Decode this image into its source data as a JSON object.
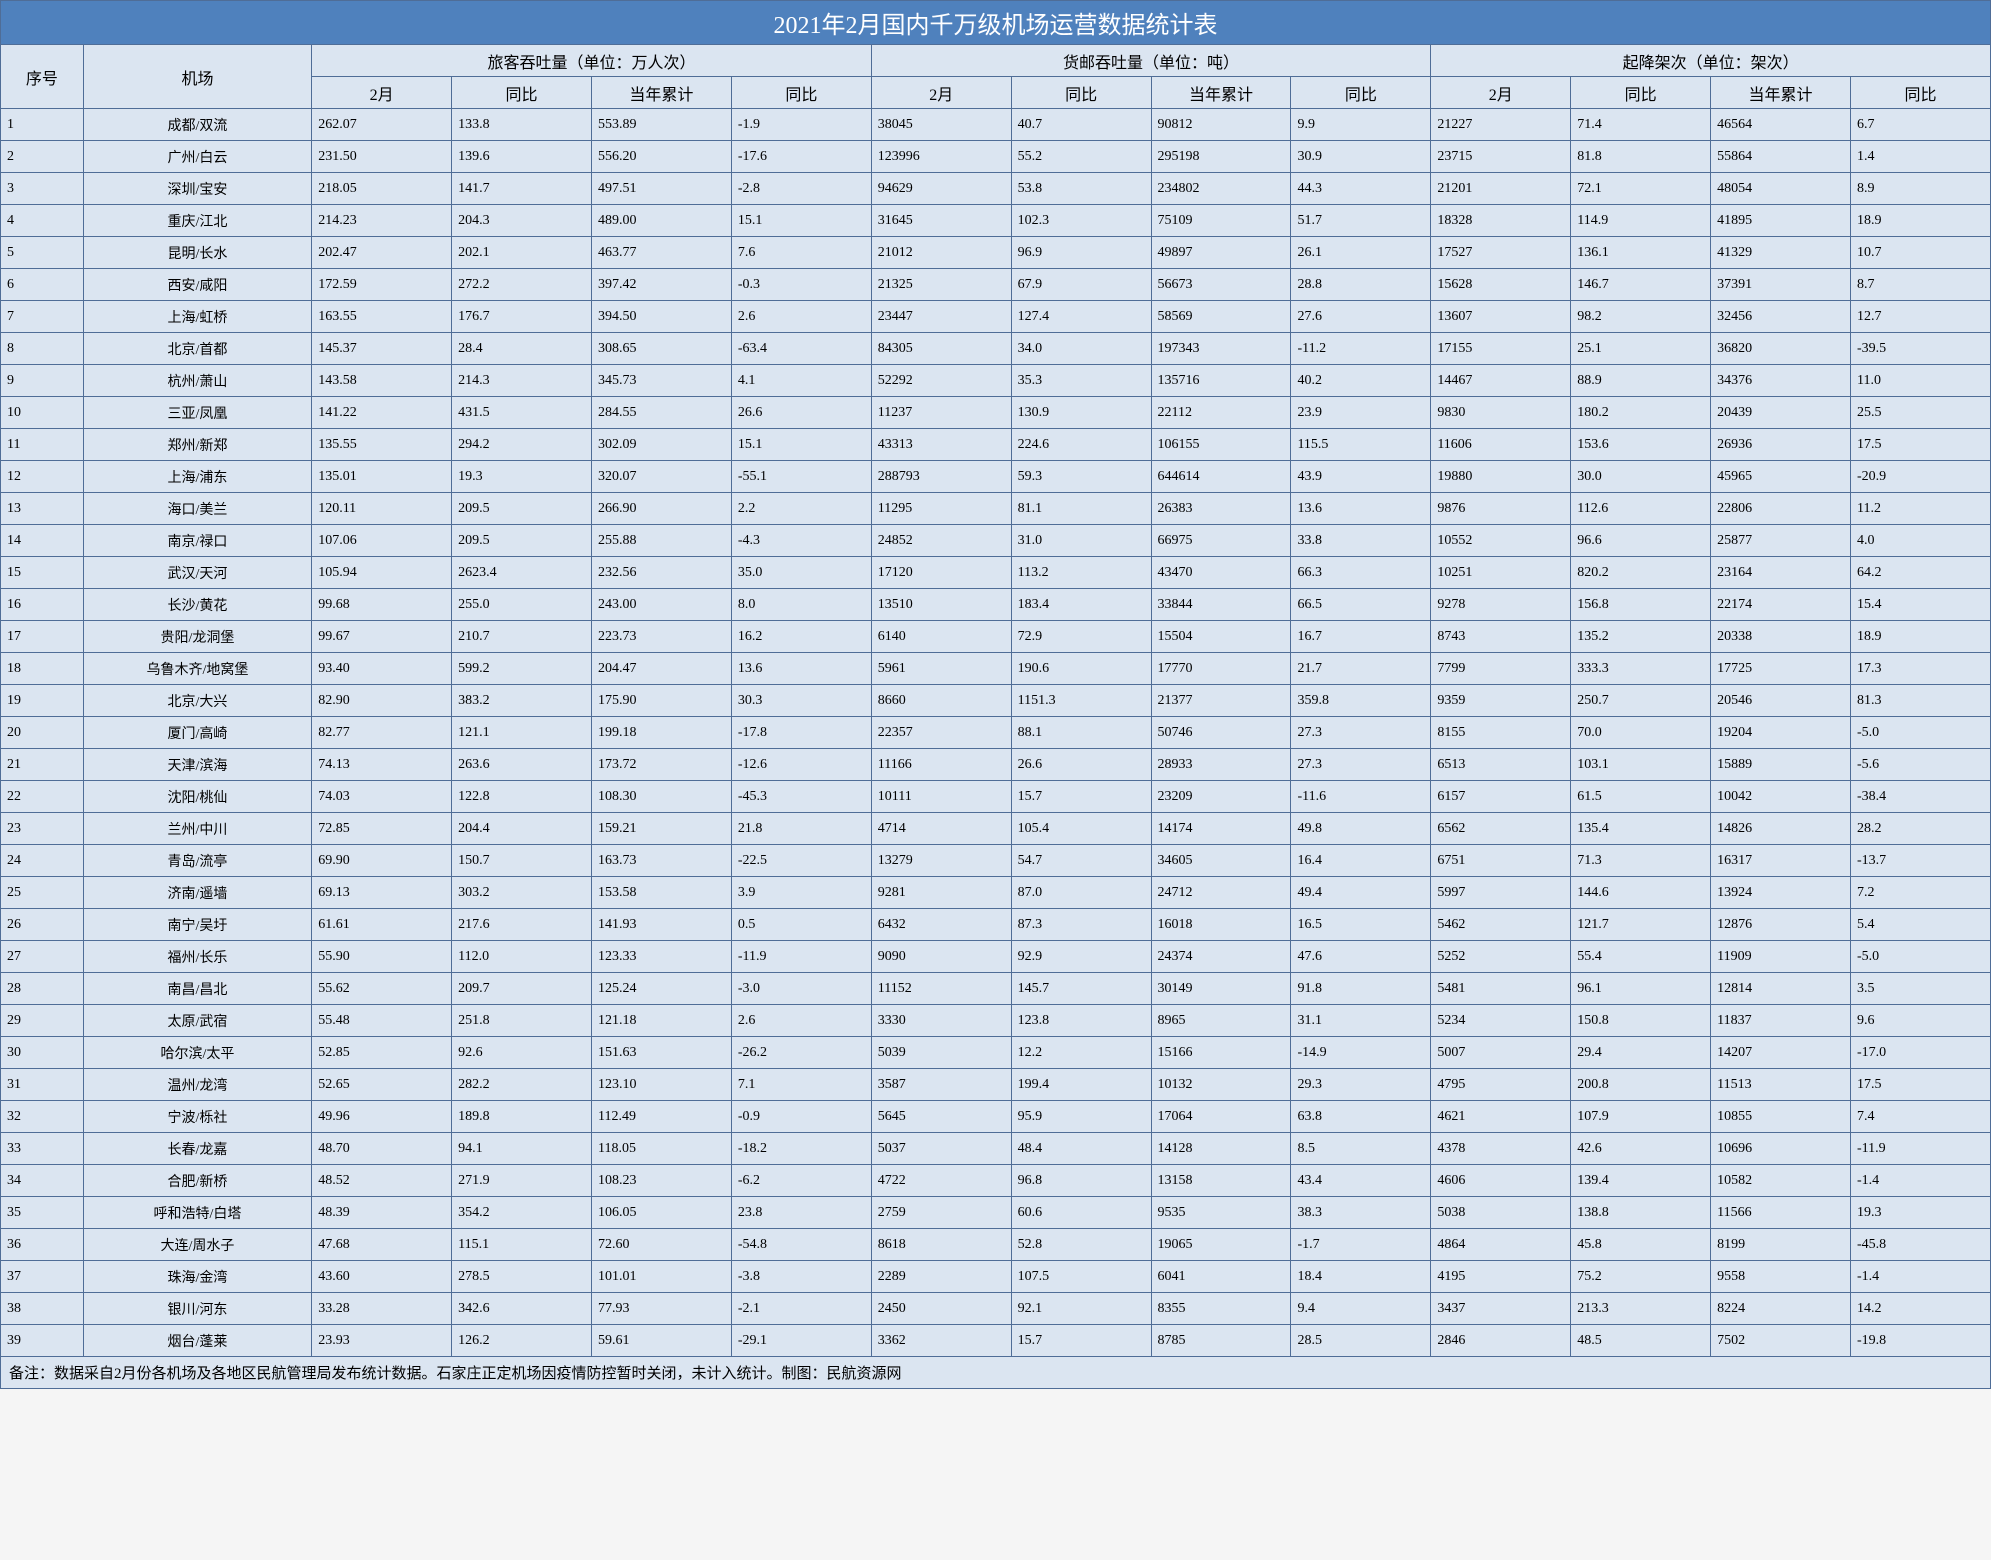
{
  "title": "2021年2月国内千万级机场运营数据统计表",
  "h1": {
    "idx": "序号",
    "ap": "机场",
    "g1": "旅客吞吐量（单位：万人次）",
    "g2": "货邮吞吐量（单位：吨）",
    "g3": "起降架次（单位：架次）"
  },
  "h2": {
    "c1": "2月",
    "c2": "同比",
    "c3": "当年累计",
    "c4": "同比"
  },
  "note": "备注：数据采自2月份各机场及各地区民航管理局发布统计数据。石家庄正定机场因疫情防控暂时关闭，未计入统计。制图：民航资源网",
  "rows": [
    {
      "n": "1",
      "ap": "成都/双流",
      "p1": "262.07",
      "p2": "133.8",
      "p3": "553.89",
      "p4": "-1.9",
      "c1": "38045",
      "c2": "40.7",
      "c3": "90812",
      "c4": "9.9",
      "m1": "21227",
      "m2": "71.4",
      "m3": "46564",
      "m4": "6.7"
    },
    {
      "n": "2",
      "ap": "广州/白云",
      "p1": "231.50",
      "p2": "139.6",
      "p3": "556.20",
      "p4": "-17.6",
      "c1": "123996",
      "c2": "55.2",
      "c3": "295198",
      "c4": "30.9",
      "m1": "23715",
      "m2": "81.8",
      "m3": "55864",
      "m4": "1.4"
    },
    {
      "n": "3",
      "ap": "深圳/宝安",
      "p1": "218.05",
      "p2": "141.7",
      "p3": "497.51",
      "p4": "-2.8",
      "c1": "94629",
      "c2": "53.8",
      "c3": "234802",
      "c4": "44.3",
      "m1": "21201",
      "m2": "72.1",
      "m3": "48054",
      "m4": "8.9"
    },
    {
      "n": "4",
      "ap": "重庆/江北",
      "p1": "214.23",
      "p2": "204.3",
      "p3": "489.00",
      "p4": "15.1",
      "c1": "31645",
      "c2": "102.3",
      "c3": "75109",
      "c4": "51.7",
      "m1": "18328",
      "m2": "114.9",
      "m3": "41895",
      "m4": "18.9"
    },
    {
      "n": "5",
      "ap": "昆明/长水",
      "p1": "202.47",
      "p2": "202.1",
      "p3": "463.77",
      "p4": "7.6",
      "c1": "21012",
      "c2": "96.9",
      "c3": "49897",
      "c4": "26.1",
      "m1": "17527",
      "m2": "136.1",
      "m3": "41329",
      "m4": "10.7"
    },
    {
      "n": "6",
      "ap": "西安/咸阳",
      "p1": "172.59",
      "p2": "272.2",
      "p3": "397.42",
      "p4": "-0.3",
      "c1": "21325",
      "c2": "67.9",
      "c3": "56673",
      "c4": "28.8",
      "m1": "15628",
      "m2": "146.7",
      "m3": "37391",
      "m4": "8.7"
    },
    {
      "n": "7",
      "ap": "上海/虹桥",
      "p1": "163.55",
      "p2": "176.7",
      "p3": "394.50",
      "p4": "2.6",
      "c1": "23447",
      "c2": "127.4",
      "c3": "58569",
      "c4": "27.6",
      "m1": "13607",
      "m2": "98.2",
      "m3": "32456",
      "m4": "12.7"
    },
    {
      "n": "8",
      "ap": "北京/首都",
      "p1": "145.37",
      "p2": "28.4",
      "p3": "308.65",
      "p4": "-63.4",
      "c1": "84305",
      "c2": "34.0",
      "c3": "197343",
      "c4": "-11.2",
      "m1": "17155",
      "m2": "25.1",
      "m3": "36820",
      "m4": "-39.5"
    },
    {
      "n": "9",
      "ap": "杭州/萧山",
      "p1": "143.58",
      "p2": "214.3",
      "p3": "345.73",
      "p4": "4.1",
      "c1": "52292",
      "c2": "35.3",
      "c3": "135716",
      "c4": "40.2",
      "m1": "14467",
      "m2": "88.9",
      "m3": "34376",
      "m4": "11.0"
    },
    {
      "n": "10",
      "ap": "三亚/凤凰",
      "p1": "141.22",
      "p2": "431.5",
      "p3": "284.55",
      "p4": "26.6",
      "c1": "11237",
      "c2": "130.9",
      "c3": "22112",
      "c4": "23.9",
      "m1": "9830",
      "m2": "180.2",
      "m3": "20439",
      "m4": "25.5"
    },
    {
      "n": "11",
      "ap": "郑州/新郑",
      "p1": "135.55",
      "p2": "294.2",
      "p3": "302.09",
      "p4": "15.1",
      "c1": "43313",
      "c2": "224.6",
      "c3": "106155",
      "c4": "115.5",
      "m1": "11606",
      "m2": "153.6",
      "m3": "26936",
      "m4": "17.5"
    },
    {
      "n": "12",
      "ap": "上海/浦东",
      "p1": "135.01",
      "p2": "19.3",
      "p3": "320.07",
      "p4": "-55.1",
      "c1": "288793",
      "c2": "59.3",
      "c3": "644614",
      "c4": "43.9",
      "m1": "19880",
      "m2": "30.0",
      "m3": "45965",
      "m4": "-20.9"
    },
    {
      "n": "13",
      "ap": "海口/美兰",
      "p1": "120.11",
      "p2": "209.5",
      "p3": "266.90",
      "p4": "2.2",
      "c1": "11295",
      "c2": "81.1",
      "c3": "26383",
      "c4": "13.6",
      "m1": "9876",
      "m2": "112.6",
      "m3": "22806",
      "m4": "11.2"
    },
    {
      "n": "14",
      "ap": "南京/禄口",
      "p1": "107.06",
      "p2": "209.5",
      "p3": "255.88",
      "p4": "-4.3",
      "c1": "24852",
      "c2": "31.0",
      "c3": "66975",
      "c4": "33.8",
      "m1": "10552",
      "m2": "96.6",
      "m3": "25877",
      "m4": "4.0"
    },
    {
      "n": "15",
      "ap": "武汉/天河",
      "p1": "105.94",
      "p2": "2623.4",
      "p3": "232.56",
      "p4": "35.0",
      "c1": "17120",
      "c2": "113.2",
      "c3": "43470",
      "c4": "66.3",
      "m1": "10251",
      "m2": "820.2",
      "m3": "23164",
      "m4": "64.2"
    },
    {
      "n": "16",
      "ap": "长沙/黄花",
      "p1": "99.68",
      "p2": "255.0",
      "p3": "243.00",
      "p4": "8.0",
      "c1": "13510",
      "c2": "183.4",
      "c3": "33844",
      "c4": "66.5",
      "m1": "9278",
      "m2": "156.8",
      "m3": "22174",
      "m4": "15.4"
    },
    {
      "n": "17",
      "ap": "贵阳/龙洞堡",
      "p1": "99.67",
      "p2": "210.7",
      "p3": "223.73",
      "p4": "16.2",
      "c1": "6140",
      "c2": "72.9",
      "c3": "15504",
      "c4": "16.7",
      "m1": "8743",
      "m2": "135.2",
      "m3": "20338",
      "m4": "18.9"
    },
    {
      "n": "18",
      "ap": "乌鲁木齐/地窝堡",
      "p1": "93.40",
      "p2": "599.2",
      "p3": "204.47",
      "p4": "13.6",
      "c1": "5961",
      "c2": "190.6",
      "c3": "17770",
      "c4": "21.7",
      "m1": "7799",
      "m2": "333.3",
      "m3": "17725",
      "m4": "17.3"
    },
    {
      "n": "19",
      "ap": "北京/大兴",
      "p1": "82.90",
      "p2": "383.2",
      "p3": "175.90",
      "p4": "30.3",
      "c1": "8660",
      "c2": "1151.3",
      "c3": "21377",
      "c4": "359.8",
      "m1": "9359",
      "m2": "250.7",
      "m3": "20546",
      "m4": "81.3"
    },
    {
      "n": "20",
      "ap": "厦门/高崎",
      "p1": "82.77",
      "p2": "121.1",
      "p3": "199.18",
      "p4": "-17.8",
      "c1": "22357",
      "c2": "88.1",
      "c3": "50746",
      "c4": "27.3",
      "m1": "8155",
      "m2": "70.0",
      "m3": "19204",
      "m4": "-5.0"
    },
    {
      "n": "21",
      "ap": "天津/滨海",
      "p1": "74.13",
      "p2": "263.6",
      "p3": "173.72",
      "p4": "-12.6",
      "c1": "11166",
      "c2": "26.6",
      "c3": "28933",
      "c4": "27.3",
      "m1": "6513",
      "m2": "103.1",
      "m3": "15889",
      "m4": "-5.6"
    },
    {
      "n": "22",
      "ap": "沈阳/桃仙",
      "p1": "74.03",
      "p2": "122.8",
      "p3": "108.30",
      "p4": "-45.3",
      "c1": "10111",
      "c2": "15.7",
      "c3": "23209",
      "c4": "-11.6",
      "m1": "6157",
      "m2": "61.5",
      "m3": "10042",
      "m4": "-38.4"
    },
    {
      "n": "23",
      "ap": "兰州/中川",
      "p1": "72.85",
      "p2": "204.4",
      "p3": "159.21",
      "p4": "21.8",
      "c1": "4714",
      "c2": "105.4",
      "c3": "14174",
      "c4": "49.8",
      "m1": "6562",
      "m2": "135.4",
      "m3": "14826",
      "m4": "28.2"
    },
    {
      "n": "24",
      "ap": "青岛/流亭",
      "p1": "69.90",
      "p2": "150.7",
      "p3": "163.73",
      "p4": "-22.5",
      "c1": "13279",
      "c2": "54.7",
      "c3": "34605",
      "c4": "16.4",
      "m1": "6751",
      "m2": "71.3",
      "m3": "16317",
      "m4": "-13.7"
    },
    {
      "n": "25",
      "ap": "济南/遥墙",
      "p1": "69.13",
      "p2": "303.2",
      "p3": "153.58",
      "p4": "3.9",
      "c1": "9281",
      "c2": "87.0",
      "c3": "24712",
      "c4": "49.4",
      "m1": "5997",
      "m2": "144.6",
      "m3": "13924",
      "m4": "7.2"
    },
    {
      "n": "26",
      "ap": "南宁/吴圩",
      "p1": "61.61",
      "p2": "217.6",
      "p3": "141.93",
      "p4": "0.5",
      "c1": "6432",
      "c2": "87.3",
      "c3": "16018",
      "c4": "16.5",
      "m1": "5462",
      "m2": "121.7",
      "m3": "12876",
      "m4": "5.4"
    },
    {
      "n": "27",
      "ap": "福州/长乐",
      "p1": "55.90",
      "p2": "112.0",
      "p3": "123.33",
      "p4": "-11.9",
      "c1": "9090",
      "c2": "92.9",
      "c3": "24374",
      "c4": "47.6",
      "m1": "5252",
      "m2": "55.4",
      "m3": "11909",
      "m4": "-5.0"
    },
    {
      "n": "28",
      "ap": "南昌/昌北",
      "p1": "55.62",
      "p2": "209.7",
      "p3": "125.24",
      "p4": "-3.0",
      "c1": "11152",
      "c2": "145.7",
      "c3": "30149",
      "c4": "91.8",
      "m1": "5481",
      "m2": "96.1",
      "m3": "12814",
      "m4": "3.5"
    },
    {
      "n": "29",
      "ap": "太原/武宿",
      "p1": "55.48",
      "p2": "251.8",
      "p3": "121.18",
      "p4": "2.6",
      "c1": "3330",
      "c2": "123.8",
      "c3": "8965",
      "c4": "31.1",
      "m1": "5234",
      "m2": "150.8",
      "m3": "11837",
      "m4": "9.6"
    },
    {
      "n": "30",
      "ap": "哈尔滨/太平",
      "p1": "52.85",
      "p2": "92.6",
      "p3": "151.63",
      "p4": "-26.2",
      "c1": "5039",
      "c2": "12.2",
      "c3": "15166",
      "c4": "-14.9",
      "m1": "5007",
      "m2": "29.4",
      "m3": "14207",
      "m4": "-17.0"
    },
    {
      "n": "31",
      "ap": "温州/龙湾",
      "p1": "52.65",
      "p2": "282.2",
      "p3": "123.10",
      "p4": "7.1",
      "c1": "3587",
      "c2": "199.4",
      "c3": "10132",
      "c4": "29.3",
      "m1": "4795",
      "m2": "200.8",
      "m3": "11513",
      "m4": "17.5"
    },
    {
      "n": "32",
      "ap": "宁波/栎社",
      "p1": "49.96",
      "p2": "189.8",
      "p3": "112.49",
      "p4": "-0.9",
      "c1": "5645",
      "c2": "95.9",
      "c3": "17064",
      "c4": "63.8",
      "m1": "4621",
      "m2": "107.9",
      "m3": "10855",
      "m4": "7.4"
    },
    {
      "n": "33",
      "ap": "长春/龙嘉",
      "p1": "48.70",
      "p2": "94.1",
      "p3": "118.05",
      "p4": "-18.2",
      "c1": "5037",
      "c2": "48.4",
      "c3": "14128",
      "c4": "8.5",
      "m1": "4378",
      "m2": "42.6",
      "m3": "10696",
      "m4": "-11.9"
    },
    {
      "n": "34",
      "ap": "合肥/新桥",
      "p1": "48.52",
      "p2": "271.9",
      "p3": "108.23",
      "p4": "-6.2",
      "c1": "4722",
      "c2": "96.8",
      "c3": "13158",
      "c4": "43.4",
      "m1": "4606",
      "m2": "139.4",
      "m3": "10582",
      "m4": "-1.4"
    },
    {
      "n": "35",
      "ap": "呼和浩特/白塔",
      "p1": "48.39",
      "p2": "354.2",
      "p3": "106.05",
      "p4": "23.8",
      "c1": "2759",
      "c2": "60.6",
      "c3": "9535",
      "c4": "38.3",
      "m1": "5038",
      "m2": "138.8",
      "m3": "11566",
      "m4": "19.3"
    },
    {
      "n": "36",
      "ap": "大连/周水子",
      "p1": "47.68",
      "p2": "115.1",
      "p3": "72.60",
      "p4": "-54.8",
      "c1": "8618",
      "c2": "52.8",
      "c3": "19065",
      "c4": "-1.7",
      "m1": "4864",
      "m2": "45.8",
      "m3": "8199",
      "m4": "-45.8"
    },
    {
      "n": "37",
      "ap": "珠海/金湾",
      "p1": "43.60",
      "p2": "278.5",
      "p3": "101.01",
      "p4": "-3.8",
      "c1": "2289",
      "c2": "107.5",
      "c3": "6041",
      "c4": "18.4",
      "m1": "4195",
      "m2": "75.2",
      "m3": "9558",
      "m4": "-1.4"
    },
    {
      "n": "38",
      "ap": "银川/河东",
      "p1": "33.28",
      "p2": "342.6",
      "p3": "77.93",
      "p4": "-2.1",
      "c1": "2450",
      "c2": "92.1",
      "c3": "8355",
      "c4": "9.4",
      "m1": "3437",
      "m2": "213.3",
      "m3": "8224",
      "m4": "14.2"
    },
    {
      "n": "39",
      "ap": "烟台/蓬莱",
      "p1": "23.93",
      "p2": "126.2",
      "p3": "59.61",
      "p4": "-29.1",
      "c1": "3362",
      "c2": "15.7",
      "c3": "8785",
      "c4": "28.5",
      "m1": "2846",
      "m2": "48.5",
      "m3": "7502",
      "m4": "-19.8"
    }
  ]
}
